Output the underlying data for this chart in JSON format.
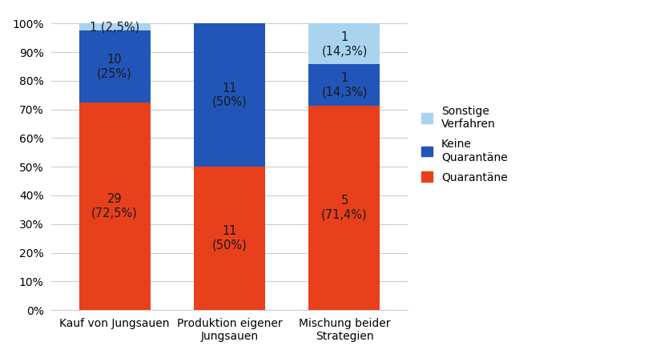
{
  "categories": [
    "Kauf von Jungsauen",
    "Produktion eigener\nJungsauen",
    "Mischung beider\nStrategien"
  ],
  "quarantaene": [
    72.5,
    50.0,
    71.4
  ],
  "keine_quarantaene": [
    25.0,
    50.0,
    14.3
  ],
  "sonstige": [
    2.5,
    0.0,
    14.3
  ],
  "quarantaene_labels": [
    "29\n(72,5%)",
    "11\n(50%)",
    "5\n(71,4%)"
  ],
  "keine_quarantaene_labels": [
    "10\n(25%)",
    "11\n(50%)",
    "1\n(14,3%)"
  ],
  "sonstige_labels": [
    "1 (2,5%)",
    "",
    "1\n(14,3%)"
  ],
  "color_quarantaene": "#e8401c",
  "color_keine_quarantaene": "#2255b8",
  "color_sonstige": "#a8d4f0",
  "legend_labels": [
    "Sonstige\nVerfahren",
    "Keine\nQuarantäne",
    "Quarantäne"
  ],
  "ylim": [
    0,
    104
  ],
  "yticks": [
    0,
    10,
    20,
    30,
    40,
    50,
    60,
    70,
    80,
    90,
    100
  ],
  "ytick_labels": [
    "0%",
    "10%",
    "20%",
    "30%",
    "40%",
    "50%",
    "60%",
    "70%",
    "80%",
    "90%",
    "100%"
  ],
  "bar_width": 0.62,
  "label_fontsize": 10.5,
  "legend_fontsize": 10,
  "tick_fontsize": 10,
  "label_color_dark": "#1a1a1a",
  "background_color": "#ffffff"
}
